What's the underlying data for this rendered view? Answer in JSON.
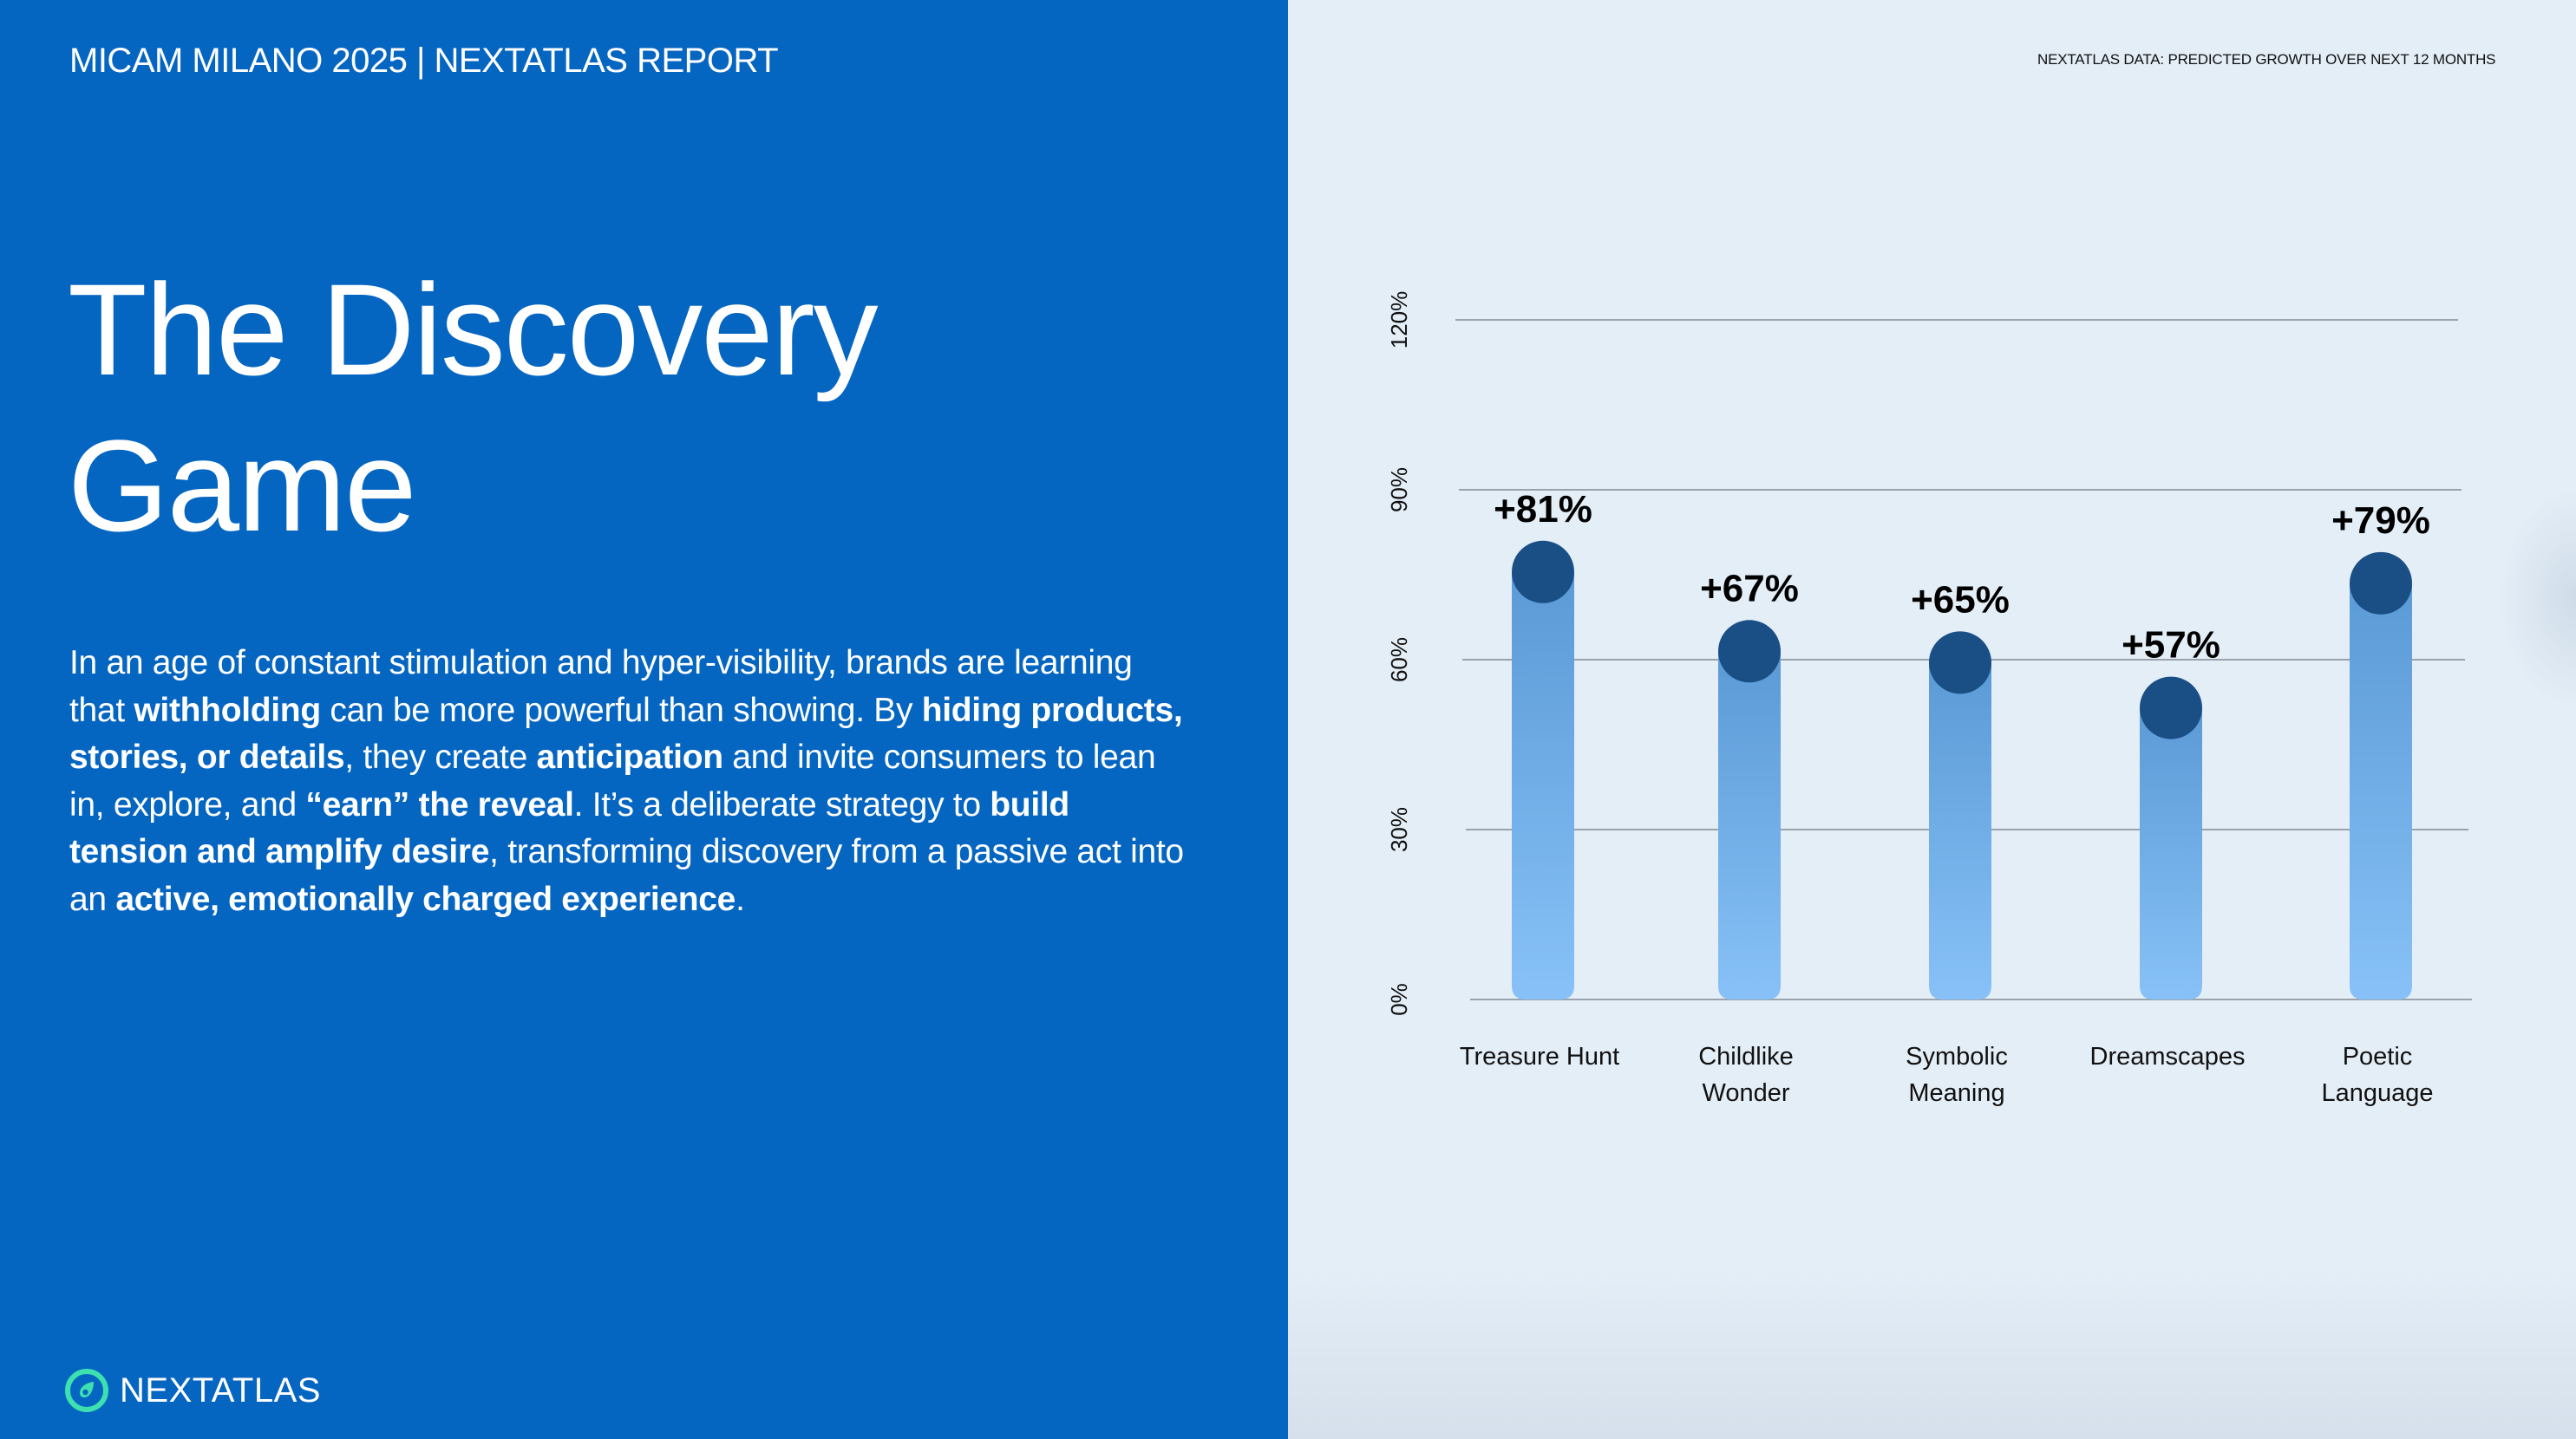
{
  "header": {
    "report_title": "MICAM MILANO 2025 | NEXTATLAS REPORT",
    "data_caption": "NEXTATLAS DATA: PREDICTED GROWTH OVER NEXT 12 MONTHS"
  },
  "main": {
    "title_line1": "The Discovery",
    "title_line2": "Game",
    "body": [
      {
        "text": "In an age of constant stimulation and hyper-visibility, brands are learning that ",
        "bold": false
      },
      {
        "text": "withholding",
        "bold": true
      },
      {
        "text": " can be more powerful than showing. By ",
        "bold": false
      },
      {
        "text": "hiding products, stories, or details",
        "bold": true
      },
      {
        "text": ", they create ",
        "bold": false
      },
      {
        "text": "anticipation",
        "bold": true
      },
      {
        "text": " and invite consumers to lean in, explore, and ",
        "bold": false
      },
      {
        "text": "“earn” the reveal",
        "bold": true
      },
      {
        "text": ". It’s a deliberate strategy to ",
        "bold": false
      },
      {
        "text": "build tension and amplify desire",
        "bold": true
      },
      {
        "text": ", transforming discovery from a passive act into an ",
        "bold": false
      },
      {
        "text": "active, emotionally charged experience",
        "bold": true
      },
      {
        "text": ".",
        "bold": false
      }
    ]
  },
  "logo": {
    "text_light": "NEXT",
    "text_bold": "ATLAS",
    "icon": "nextatlas-compass-icon",
    "icon_color": "#3EE0B0"
  },
  "colors": {
    "left_bg": "#0566C2",
    "right_bg": "#E4EEF7",
    "bar_top": "#5B9AD6",
    "bar_bottom": "#87C1F7",
    "bar_cap": "#1A4F85",
    "grid": "#9AA3AD"
  },
  "chart_data": {
    "type": "bar",
    "title": "NEXTATLAS DATA: PREDICTED GROWTH OVER NEXT 12 MONTHS",
    "categories": [
      [
        "Treasure Hunt"
      ],
      [
        "Childlike",
        "Wonder"
      ],
      [
        "Symbolic",
        "Meaning"
      ],
      [
        "Dreamscapes"
      ],
      [
        "Poetic",
        "Language"
      ]
    ],
    "values": [
      81,
      67,
      65,
      57,
      79
    ],
    "data_labels": [
      "+81%",
      "+67%",
      "+65%",
      "+57%",
      "+79%"
    ],
    "yticks": [
      0,
      30,
      60,
      90,
      120
    ],
    "ytick_labels": [
      "0%",
      "30%",
      "60%",
      "90%",
      "120%"
    ],
    "ylim": [
      0,
      120
    ],
    "xlabel": "",
    "ylabel": "",
    "grid": true,
    "legend": "none"
  }
}
